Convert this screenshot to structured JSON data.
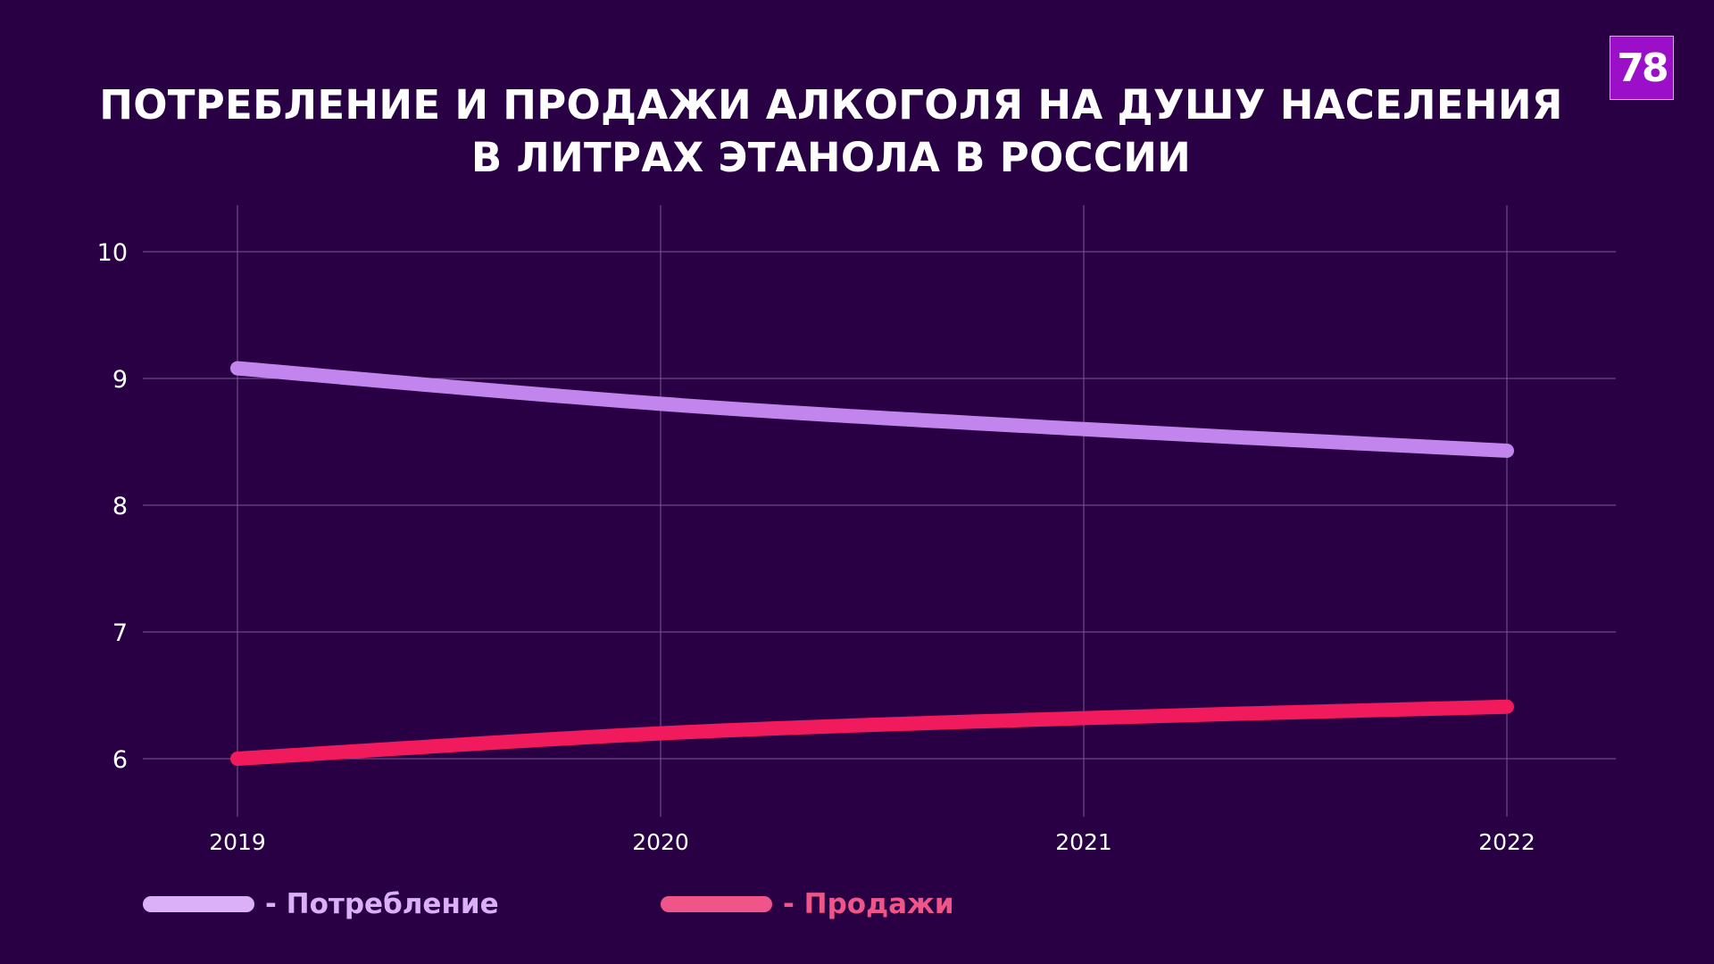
{
  "logo": "78",
  "chart_data": {
    "type": "line",
    "title": [
      "ПОТРЕБЛЕНИЕ И ПРОДАЖИ АЛКОГОЛЯ НА ДУШУ НАСЕЛЕНИЯ",
      "В ЛИТРАХ ЭТАНОЛА В РОССИИ"
    ],
    "categories": [
      "2019",
      "2020",
      "2021",
      "2022"
    ],
    "yticks": [
      "6",
      "7",
      "8",
      "9",
      "10"
    ],
    "ylim": [
      5.5,
      10.4
    ],
    "grid": true,
    "legend_position": "bottom-left",
    "series": [
      {
        "name": "- Потребление",
        "values": [
          9.08,
          8.8,
          8.6,
          8.43
        ],
        "color": "#c285ee",
        "legend_color": "#dcb0f8"
      },
      {
        "name": "- Продажи",
        "values": [
          6.0,
          6.2,
          6.32,
          6.41
        ],
        "color": "#f01a5c",
        "legend_color": "#f0558a"
      }
    ]
  }
}
